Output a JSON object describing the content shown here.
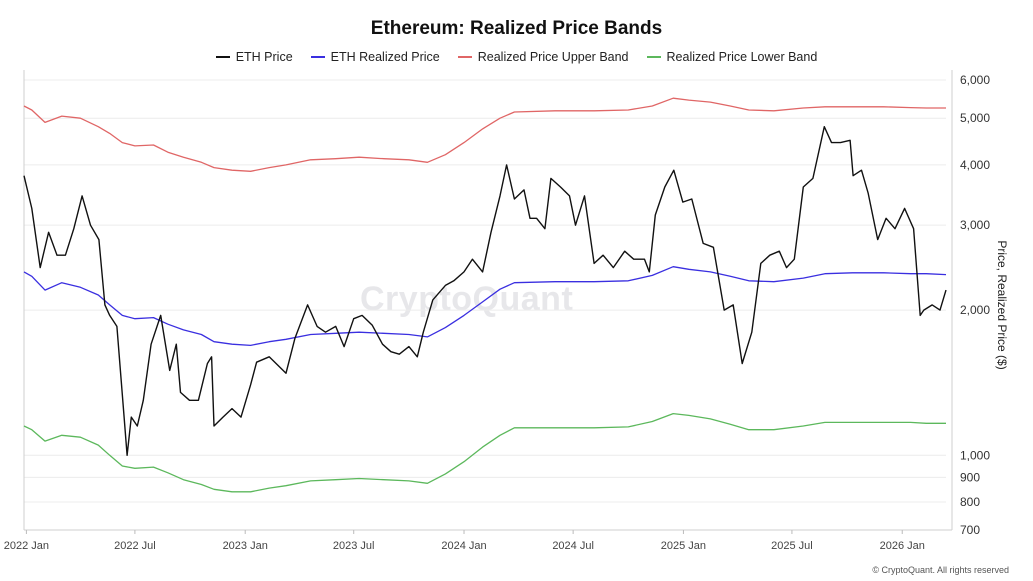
{
  "footer": "© CryptoQuant. All rights reserved",
  "watermark": "CryptoQuant",
  "chart_data": {
    "type": "line",
    "title": "Ethereum: Realized Price Bands",
    "xlabel": "",
    "ylabel": "Price, Realized Price ($)",
    "y_scale": "log",
    "ylim": [
      700,
      6000
    ],
    "x_range": [
      "2021-12-28",
      "2026-03-15"
    ],
    "y_ticks": [
      700,
      800,
      900,
      1000,
      2000,
      3000,
      4000,
      5000,
      6000
    ],
    "y_tick_labels": [
      "700",
      "800",
      "900",
      "1,000",
      "2,000",
      "3,000",
      "4,000",
      "5,000",
      "6,000"
    ],
    "x_ticks": [
      "2022-01-01",
      "2022-07-01",
      "2023-01-01",
      "2023-07-01",
      "2024-01-01",
      "2024-07-01",
      "2025-01-01",
      "2025-07-01",
      "2026-01-01"
    ],
    "x_tick_labels": [
      "2022 Jan",
      "2022 Jul",
      "2023 Jan",
      "2023 Jul",
      "2024 Jan",
      "2024 Jul",
      "2025 Jan",
      "2025 Jul",
      "2026 Jan"
    ],
    "grid": true,
    "legend_position": "top-center",
    "series": [
      {
        "name": "ETH Price",
        "color": "#111111",
        "x": [
          "2021-12-28",
          "2022-01-10",
          "2022-01-24",
          "2022-02-07",
          "2022-02-21",
          "2022-03-07",
          "2022-03-21",
          "2022-04-04",
          "2022-04-18",
          "2022-05-02",
          "2022-05-12",
          "2022-05-20",
          "2022-06-01",
          "2022-06-13",
          "2022-06-18",
          "2022-06-25",
          "2022-07-05",
          "2022-07-15",
          "2022-07-28",
          "2022-08-13",
          "2022-08-28",
          "2022-09-08",
          "2022-09-15",
          "2022-09-30",
          "2022-10-15",
          "2022-10-30",
          "2022-11-06",
          "2022-11-10",
          "2022-11-25",
          "2022-12-10",
          "2022-12-25",
          "2023-01-10",
          "2023-01-20",
          "2023-02-10",
          "2023-03-10",
          "2023-03-25",
          "2023-04-15",
          "2023-05-01",
          "2023-05-15",
          "2023-06-01",
          "2023-06-15",
          "2023-07-01",
          "2023-07-15",
          "2023-08-01",
          "2023-08-18",
          "2023-09-01",
          "2023-09-15",
          "2023-10-01",
          "2023-10-15",
          "2023-10-25",
          "2023-11-10",
          "2023-12-01",
          "2023-12-15",
          "2024-01-01",
          "2024-01-15",
          "2024-02-01",
          "2024-02-15",
          "2024-03-01",
          "2024-03-12",
          "2024-03-25",
          "2024-04-10",
          "2024-04-20",
          "2024-05-01",
          "2024-05-15",
          "2024-05-25",
          "2024-06-10",
          "2024-06-25",
          "2024-07-05",
          "2024-07-20",
          "2024-08-05",
          "2024-08-20",
          "2024-09-06",
          "2024-09-25",
          "2024-10-10",
          "2024-10-28",
          "2024-11-05",
          "2024-11-15",
          "2024-12-01",
          "2024-12-16",
          "2024-12-31",
          "2025-01-15",
          "2025-02-03",
          "2025-02-20",
          "2025-03-10",
          "2025-03-25",
          "2025-04-09",
          "2025-04-25",
          "2025-05-10",
          "2025-05-25",
          "2025-06-10",
          "2025-06-22",
          "2025-07-05",
          "2025-07-20",
          "2025-08-05",
          "2025-08-24",
          "2025-09-05",
          "2025-09-20",
          "2025-10-06",
          "2025-10-11",
          "2025-10-25",
          "2025-11-05",
          "2025-11-21",
          "2025-12-05",
          "2025-12-20",
          "2026-01-05",
          "2026-01-20",
          "2026-01-31",
          "2026-02-06",
          "2026-02-20",
          "2026-03-05",
          "2026-03-15"
        ],
        "y": [
          3800,
          3250,
          2450,
          2900,
          2600,
          2600,
          2950,
          3450,
          3000,
          2800,
          2050,
          1950,
          1850,
          1200,
          1000,
          1200,
          1150,
          1300,
          1700,
          1950,
          1500,
          1700,
          1350,
          1300,
          1300,
          1550,
          1600,
          1150,
          1200,
          1250,
          1200,
          1400,
          1560,
          1600,
          1480,
          1750,
          2050,
          1850,
          1800,
          1850,
          1680,
          1920,
          1950,
          1860,
          1700,
          1640,
          1620,
          1680,
          1600,
          1800,
          2100,
          2250,
          2300,
          2400,
          2550,
          2400,
          2900,
          3450,
          4000,
          3400,
          3550,
          3100,
          3100,
          2950,
          3750,
          3600,
          3450,
          3000,
          3450,
          2500,
          2600,
          2450,
          2650,
          2550,
          2550,
          2400,
          3150,
          3600,
          3900,
          3350,
          3400,
          2750,
          2700,
          2000,
          2050,
          1550,
          1800,
          2500,
          2600,
          2650,
          2450,
          2550,
          3600,
          3750,
          4800,
          4450,
          4450,
          4500,
          3800,
          3900,
          3500,
          2800,
          3100,
          2950,
          3250,
          2950,
          1950,
          2000,
          2050,
          2000,
          2200
        ]
      },
      {
        "name": "ETH Realized Price",
        "color": "#3a2fe0",
        "x": [
          "2021-12-28",
          "2022-01-10",
          "2022-02-01",
          "2022-03-01",
          "2022-04-01",
          "2022-05-01",
          "2022-05-20",
          "2022-06-10",
          "2022-07-01",
          "2022-08-01",
          "2022-08-25",
          "2022-09-20",
          "2022-10-20",
          "2022-11-10",
          "2022-12-10",
          "2023-01-10",
          "2023-02-10",
          "2023-03-10",
          "2023-04-20",
          "2023-06-01",
          "2023-07-10",
          "2023-08-20",
          "2023-10-01",
          "2023-11-01",
          "2023-12-01",
          "2024-01-01",
          "2024-02-01",
          "2024-03-01",
          "2024-03-25",
          "2024-06-01",
          "2024-08-05",
          "2024-10-01",
          "2024-11-10",
          "2024-12-15",
          "2025-01-10",
          "2025-02-15",
          "2025-03-20",
          "2025-04-20",
          "2025-06-01",
          "2025-07-20",
          "2025-08-25",
          "2025-10-10",
          "2025-12-01",
          "2026-01-15",
          "2026-02-10",
          "2026-03-15"
        ],
        "y": [
          2400,
          2350,
          2200,
          2280,
          2230,
          2150,
          2050,
          1950,
          1920,
          1930,
          1870,
          1820,
          1780,
          1720,
          1700,
          1690,
          1720,
          1740,
          1780,
          1790,
          1800,
          1790,
          1780,
          1760,
          1840,
          1950,
          2080,
          2210,
          2280,
          2290,
          2290,
          2300,
          2360,
          2460,
          2430,
          2400,
          2350,
          2300,
          2290,
          2330,
          2380,
          2390,
          2390,
          2380,
          2380,
          2370
        ]
      },
      {
        "name": "Realized Price Upper Band",
        "color": "#e06666",
        "x": [
          "2021-12-28",
          "2022-01-10",
          "2022-02-01",
          "2022-03-01",
          "2022-04-01",
          "2022-05-01",
          "2022-05-20",
          "2022-06-10",
          "2022-07-01",
          "2022-08-01",
          "2022-08-25",
          "2022-09-20",
          "2022-10-20",
          "2022-11-10",
          "2022-12-10",
          "2023-01-10",
          "2023-02-10",
          "2023-03-10",
          "2023-04-20",
          "2023-06-01",
          "2023-07-10",
          "2023-08-20",
          "2023-10-01",
          "2023-11-01",
          "2023-12-01",
          "2024-01-01",
          "2024-02-01",
          "2024-03-01",
          "2024-03-25",
          "2024-06-01",
          "2024-08-05",
          "2024-10-01",
          "2024-11-10",
          "2024-12-15",
          "2025-01-10",
          "2025-02-15",
          "2025-03-20",
          "2025-04-20",
          "2025-06-01",
          "2025-07-20",
          "2025-08-25",
          "2025-10-10",
          "2025-12-01",
          "2026-01-15",
          "2026-02-10",
          "2026-03-15"
        ],
        "y": [
          5300,
          5200,
          4900,
          5050,
          5000,
          4800,
          4650,
          4450,
          4380,
          4400,
          4250,
          4150,
          4050,
          3950,
          3900,
          3880,
          3950,
          4000,
          4100,
          4120,
          4150,
          4120,
          4100,
          4050,
          4200,
          4450,
          4750,
          5000,
          5150,
          5180,
          5180,
          5200,
          5300,
          5500,
          5450,
          5400,
          5300,
          5200,
          5180,
          5250,
          5280,
          5280,
          5280,
          5260,
          5250,
          5250
        ]
      },
      {
        "name": "Realized Price Lower Band",
        "color": "#5cb85c",
        "x": [
          "2021-12-28",
          "2022-01-10",
          "2022-02-01",
          "2022-03-01",
          "2022-04-01",
          "2022-05-01",
          "2022-05-20",
          "2022-06-10",
          "2022-07-01",
          "2022-08-01",
          "2022-08-25",
          "2022-09-20",
          "2022-10-20",
          "2022-11-10",
          "2022-12-10",
          "2023-01-10",
          "2023-02-10",
          "2023-03-10",
          "2023-04-20",
          "2023-06-01",
          "2023-07-10",
          "2023-08-20",
          "2023-10-01",
          "2023-11-01",
          "2023-12-01",
          "2024-01-01",
          "2024-02-01",
          "2024-03-01",
          "2024-03-25",
          "2024-06-01",
          "2024-08-05",
          "2024-10-01",
          "2024-11-10",
          "2024-12-15",
          "2025-01-10",
          "2025-02-15",
          "2025-03-20",
          "2025-04-20",
          "2025-06-01",
          "2025-07-20",
          "2025-08-25",
          "2025-10-10",
          "2025-12-01",
          "2026-01-15",
          "2026-02-10",
          "2026-03-15"
        ],
        "y": [
          1150,
          1130,
          1070,
          1100,
          1090,
          1050,
          1000,
          950,
          940,
          945,
          920,
          890,
          870,
          850,
          840,
          840,
          855,
          865,
          885,
          890,
          895,
          890,
          885,
          875,
          915,
          970,
          1040,
          1100,
          1140,
          1140,
          1140,
          1145,
          1175,
          1220,
          1210,
          1190,
          1160,
          1130,
          1130,
          1150,
          1170,
          1170,
          1170,
          1170,
          1165,
          1165
        ]
      }
    ]
  }
}
